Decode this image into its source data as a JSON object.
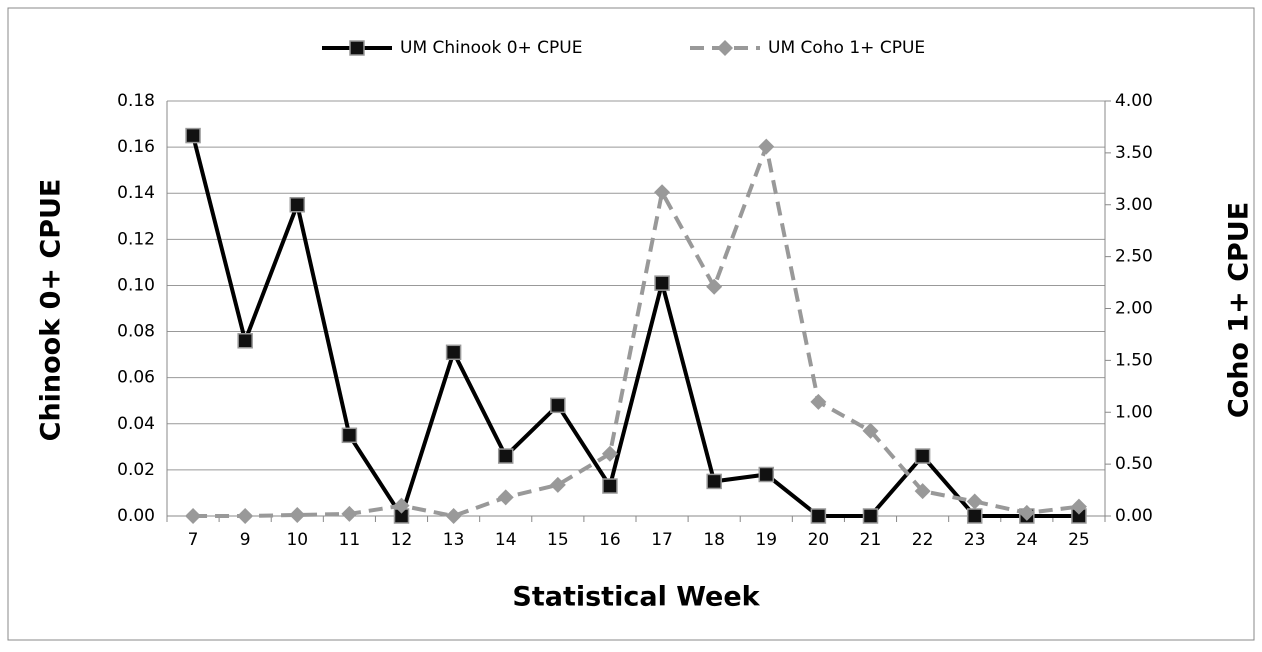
{
  "chart_data": {
    "type": "line",
    "y_label": "Chinook 0+ CPUE",
    "y2_label": "Coho 1+ CPUE",
    "x_label": "Statistical Week",
    "categories": [
      "7",
      "9",
      "10",
      "11",
      "12",
      "13",
      "14",
      "15",
      "16",
      "17",
      "18",
      "19",
      "20",
      "21",
      "22",
      "23",
      "24",
      "25"
    ],
    "series": [
      {
        "name": "UM Chinook 0+ CPUE",
        "color": "#000000",
        "marker": "square",
        "dashed": false,
        "values": [
          0.165,
          0.076,
          0.135,
          0.035,
          0.0,
          0.071,
          0.026,
          0.048,
          0.013,
          0.101,
          0.015,
          0.018,
          0.0,
          0.0,
          0.026,
          0.0,
          0.0,
          0.0
        ]
      },
      {
        "name": "UM Coho 1+ CPUE",
        "color": "#999999",
        "marker": "diamond",
        "dashed": true,
        "axis": "y2",
        "values": [
          0.0,
          0.0,
          0.01,
          0.02,
          0.1,
          0.0,
          0.18,
          0.3,
          0.6,
          3.12,
          2.21,
          3.56,
          1.1,
          0.82,
          0.24,
          0.14,
          0.03,
          0.09
        ]
      }
    ],
    "ylim": [
      0,
      0.18
    ],
    "yticks": [
      {
        "value": 0,
        "label": "0.00"
      },
      {
        "value": 0.02,
        "label": "0.02"
      },
      {
        "value": 0.04,
        "label": "0.04"
      },
      {
        "value": 0.06,
        "label": "0.06"
      },
      {
        "value": 0.08,
        "label": "0.08"
      },
      {
        "value": 0.1,
        "label": "0.10"
      },
      {
        "value": 0.12,
        "label": "0.12"
      },
      {
        "value": 0.14,
        "label": "0.14"
      },
      {
        "value": 0.16,
        "label": "0.16"
      },
      {
        "value": 0.18,
        "label": "0.18"
      }
    ],
    "y2lim": [
      0,
      4
    ],
    "y2ticks": [
      {
        "value": 0,
        "label": "0.00"
      },
      {
        "value": 0.5,
        "label": "0.50"
      },
      {
        "value": 1,
        "label": "1.00"
      },
      {
        "value": 1.5,
        "label": "1.50"
      },
      {
        "value": 2,
        "label": "2.00"
      },
      {
        "value": 2.5,
        "label": "2.50"
      },
      {
        "value": 3,
        "label": "3.00"
      },
      {
        "value": 3.5,
        "label": "3.50"
      },
      {
        "value": 4,
        "label": "4.00"
      }
    ],
    "grid": true,
    "legend": "top"
  }
}
